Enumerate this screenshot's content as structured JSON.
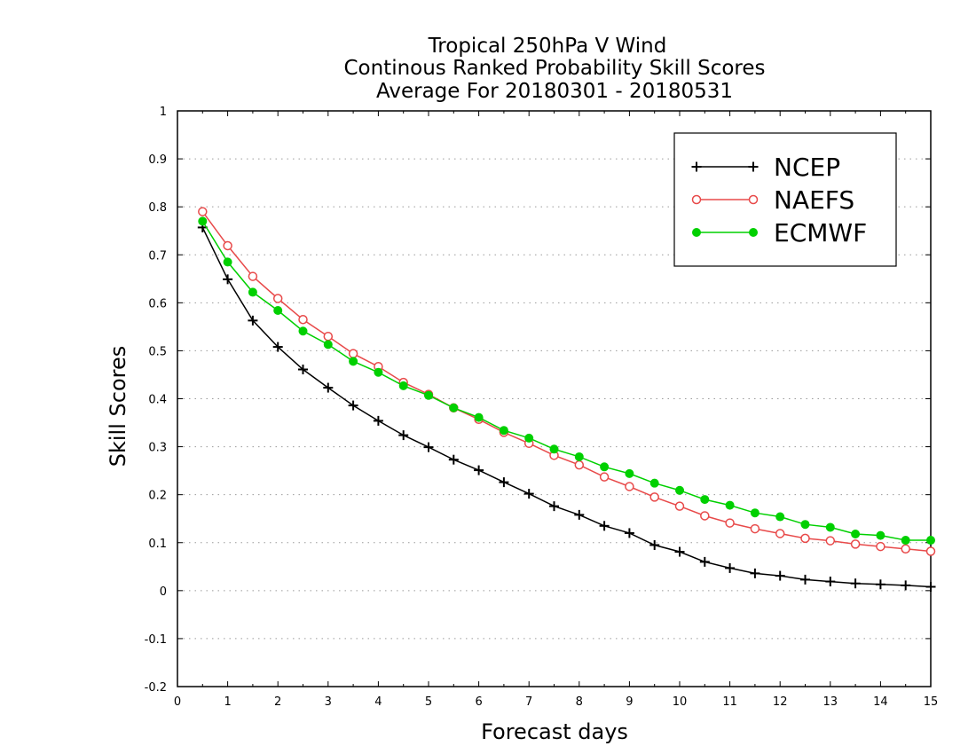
{
  "chart_data": {
    "type": "line",
    "title_lines": [
      "Tropical 250hPa V Wind",
      "Continous Ranked Probability Skill Scores",
      "Average For 20180301 - 20180531"
    ],
    "xlabel": "Forecast days",
    "ylabel": "Skill Scores",
    "xlim": [
      0,
      15
    ],
    "ylim": [
      -0.2,
      1
    ],
    "x_ticks": [
      0,
      1,
      2,
      3,
      4,
      5,
      6,
      7,
      8,
      9,
      10,
      11,
      12,
      13,
      14,
      15
    ],
    "x_tick_labels": [
      "0",
      "1",
      "2",
      "3",
      "4",
      "5",
      "6",
      "7",
      "8",
      "9",
      "10",
      "11",
      "12",
      "13",
      "14",
      "15"
    ],
    "y_ticks": [
      -0.2,
      -0.1,
      0,
      0.1,
      0.2,
      0.3,
      0.4,
      0.5,
      0.6,
      0.7,
      0.8,
      0.9,
      1
    ],
    "y_tick_labels": [
      "-0.2",
      "-0.1",
      "0",
      "0.1",
      "0.2",
      "0.3",
      "0.4",
      "0.5",
      "0.6",
      "0.7",
      "0.8",
      "0.9",
      "1"
    ],
    "grid": "horizontal dotted",
    "legend_position": "top-right",
    "x": [
      0.5,
      1,
      1.5,
      2,
      2.5,
      3,
      3.5,
      4,
      4.5,
      5,
      5.5,
      6,
      6.5,
      7,
      7.5,
      8,
      8.5,
      9,
      9.5,
      10,
      10.5,
      11,
      11.5,
      12,
      12.5,
      13,
      13.5,
      14,
      14.5,
      15
    ],
    "series": [
      {
        "name": "NCEP",
        "color": "#000000",
        "marker": "plus",
        "values": [
          0.757,
          0.649,
          0.563,
          0.508,
          0.461,
          0.423,
          0.386,
          0.354,
          0.324,
          0.299,
          0.273,
          0.251,
          0.226,
          0.202,
          0.176,
          0.158,
          0.135,
          0.12,
          0.095,
          0.081,
          0.06,
          0.047,
          0.036,
          0.031,
          0.023,
          0.019,
          0.015,
          0.013,
          0.011,
          0.008
        ]
      },
      {
        "name": "NAEFS",
        "color": "#e84a4a",
        "marker": "open-circle",
        "values": [
          0.79,
          0.719,
          0.655,
          0.609,
          0.565,
          0.53,
          0.494,
          0.467,
          0.434,
          0.409,
          0.381,
          0.357,
          0.33,
          0.307,
          0.282,
          0.262,
          0.237,
          0.217,
          0.195,
          0.176,
          0.156,
          0.141,
          0.129,
          0.119,
          0.109,
          0.104,
          0.097,
          0.092,
          0.087,
          0.082
        ]
      },
      {
        "name": "ECMWF",
        "color": "#00d000",
        "marker": "filled-circle",
        "values": [
          0.77,
          0.685,
          0.622,
          0.584,
          0.541,
          0.513,
          0.478,
          0.455,
          0.427,
          0.407,
          0.381,
          0.361,
          0.334,
          0.318,
          0.295,
          0.279,
          0.258,
          0.244,
          0.224,
          0.209,
          0.19,
          0.178,
          0.162,
          0.154,
          0.138,
          0.132,
          0.118,
          0.115,
          0.105,
          0.105
        ]
      }
    ]
  }
}
